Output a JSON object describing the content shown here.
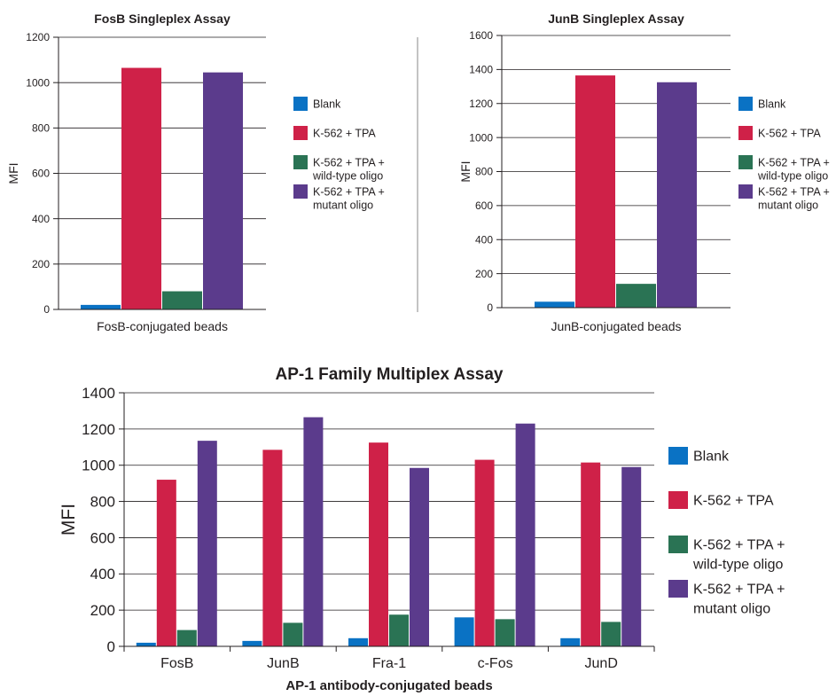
{
  "colors": {
    "axis": "#231f20",
    "grid": "#231f20",
    "divider": "#8a8a8a",
    "series": [
      "#0a72c4",
      "#cf2148",
      "#2a7354",
      "#5b3b8c"
    ]
  },
  "chart_data": [
    {
      "type": "bar",
      "title": "FosB Singleplex Assay",
      "ylabel": "MFI",
      "xlabel": "",
      "categories": [
        "FosB-conjugated beads"
      ],
      "ylim": [
        0,
        1200
      ],
      "yticks": [
        "0",
        "200",
        "400",
        "600",
        "800",
        "1000",
        "1200"
      ],
      "grid": true,
      "legend_position": "right",
      "series": [
        {
          "name": "Blank",
          "values": [
            20
          ]
        },
        {
          "name": "K-562 + TPA",
          "values": [
            1065
          ]
        },
        {
          "name": "K-562 + TPA + wild-type oligo",
          "values": [
            80
          ]
        },
        {
          "name": "K-562 + TPA + mutant oligo",
          "values": [
            1045
          ]
        }
      ]
    },
    {
      "type": "bar",
      "title": "JunB Singleplex Assay",
      "ylabel": "MFI",
      "xlabel": "",
      "categories": [
        "JunB-conjugated beads"
      ],
      "ylim": [
        0,
        1600
      ],
      "yticks": [
        "0",
        "200",
        "400",
        "600",
        "800",
        "1000",
        "1200",
        "1400",
        "1600"
      ],
      "grid": true,
      "legend_position": "right",
      "series": [
        {
          "name": "Blank",
          "values": [
            35
          ]
        },
        {
          "name": "K-562 + TPA",
          "values": [
            1365
          ]
        },
        {
          "name": "K-562 + TPA + wild-type oligo",
          "values": [
            140
          ]
        },
        {
          "name": "K-562 + TPA + mutant oligo",
          "values": [
            1325
          ]
        }
      ]
    },
    {
      "type": "bar",
      "title": "AP-1 Family Multiplex Assay",
      "ylabel": "MFI",
      "xlabel": "AP-1 antibody-conjugated beads",
      "categories": [
        "FosB",
        "JunB",
        "Fra-1",
        "c-Fos",
        "JunD"
      ],
      "ylim": [
        0,
        1400
      ],
      "yticks": [
        "0",
        "200",
        "400",
        "600",
        "800",
        "1000",
        "1200",
        "1400"
      ],
      "grid": true,
      "legend_position": "right",
      "series": [
        {
          "name": "Blank",
          "values": [
            20,
            30,
            45,
            160,
            45
          ]
        },
        {
          "name": "K-562 + TPA",
          "values": [
            920,
            1085,
            1125,
            1030,
            1015
          ]
        },
        {
          "name": "K-562 + TPA + wild-type oligo",
          "values": [
            90,
            130,
            175,
            150,
            135
          ]
        },
        {
          "name": "K-562 + TPA + mutant oligo",
          "values": [
            1135,
            1265,
            985,
            1230,
            990
          ]
        }
      ]
    }
  ],
  "legend": [
    {
      "lines": [
        "Blank"
      ]
    },
    {
      "lines": [
        "K-562 + TPA"
      ]
    },
    {
      "lines": [
        "K-562 + TPA +",
        "wild-type oligo"
      ]
    },
    {
      "lines": [
        "K-562 + TPA +",
        "mutant oligo"
      ]
    }
  ]
}
